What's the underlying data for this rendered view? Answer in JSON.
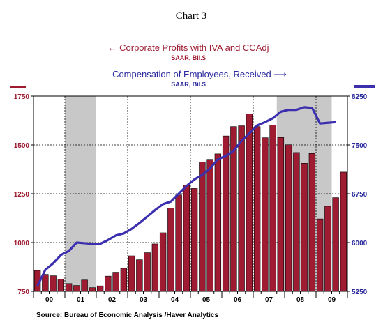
{
  "header": {
    "chart_number": "Chart 3"
  },
  "legend": {
    "profits_label": "← Corporate Profits with IVA and CCAdj",
    "profits_units": "SAAR, Bil.$",
    "comp_label": "Compensation of Employees, Received ⟶",
    "comp_units": "SAAR, Bil.$"
  },
  "source": "Source:  Bureau of Economic Analysis /Haver Analytics",
  "colors": {
    "bars": "#9e1b32",
    "bar_outline": "#000000",
    "line": "#3b2fb0",
    "recession": "#c8c8c8",
    "profits_text": "#9e1b32",
    "comp_text": "#2b2a9e"
  },
  "chart_data": {
    "type": "bar",
    "secondary_type": "line",
    "x_tick_labels": [
      "00",
      "01",
      "02",
      "03",
      "04",
      "05",
      "06",
      "07",
      "08",
      "09"
    ],
    "left_axis": {
      "ylim": [
        750,
        1750
      ],
      "ticks": [
        750,
        1000,
        1250,
        1500,
        1750
      ]
    },
    "right_axis": {
      "ylim": [
        5250,
        8250
      ],
      "ticks": [
        5250,
        6000,
        6750,
        7500,
        8250
      ]
    },
    "recessions": [
      [
        "2001Q1",
        "2001Q4"
      ],
      [
        "2007Q4",
        "2009Q2"
      ]
    ],
    "gridlines": "dashed",
    "series": [
      {
        "name": "Corporate Profits with IVA and CCAdj",
        "axis": "left",
        "type": "bar",
        "x": [
          "2000Q1",
          "2000Q2",
          "2000Q3",
          "2000Q4",
          "2001Q1",
          "2001Q2",
          "2001Q3",
          "2001Q4",
          "2002Q1",
          "2002Q2",
          "2002Q3",
          "2002Q4",
          "2003Q1",
          "2003Q2",
          "2003Q3",
          "2003Q4",
          "2004Q1",
          "2004Q2",
          "2004Q3",
          "2004Q4",
          "2005Q1",
          "2005Q2",
          "2005Q3",
          "2005Q4",
          "2006Q1",
          "2006Q2",
          "2006Q3",
          "2006Q4",
          "2007Q1",
          "2007Q2",
          "2007Q3",
          "2007Q4",
          "2008Q1",
          "2008Q2",
          "2008Q3",
          "2008Q4",
          "2009Q1",
          "2009Q2",
          "2009Q3"
        ],
        "values": [
          857,
          837,
          830,
          812,
          790,
          780,
          808,
          769,
          778,
          828,
          848,
          868,
          932,
          912,
          948,
          993,
          1050,
          1177,
          1244,
          1295,
          1277,
          1413,
          1426,
          1454,
          1546,
          1594,
          1598,
          1659,
          1594,
          1537,
          1602,
          1538,
          1501,
          1461,
          1406,
          1456,
          1121,
          1186,
          1230
        ]
      },
      {
        "name": "Compensation of Employees, Received",
        "axis": "right",
        "type": "line",
        "x": [
          "2000Q1",
          "2000Q2",
          "2000Q3",
          "2000Q4",
          "2001Q1",
          "2001Q2",
          "2001Q3",
          "2001Q4",
          "2002Q1",
          "2002Q2",
          "2002Q3",
          "2002Q4",
          "2003Q1",
          "2003Q2",
          "2003Q3",
          "2003Q4",
          "2004Q1",
          "2004Q2",
          "2004Q3",
          "2004Q4",
          "2005Q1",
          "2005Q2",
          "2005Q3",
          "2005Q4",
          "2006Q1",
          "2006Q2",
          "2006Q3",
          "2006Q4",
          "2007Q1",
          "2007Q2",
          "2007Q3",
          "2007Q4",
          "2008Q1",
          "2008Q2",
          "2008Q3",
          "2008Q4",
          "2009Q1",
          "2009Q2",
          "2009Q3"
        ],
        "values": [
          5330,
          5580,
          5680,
          5810,
          5870,
          6000,
          5990,
          5980,
          5980,
          6040,
          6110,
          6140,
          6210,
          6300,
          6400,
          6500,
          6590,
          6630,
          6750,
          6870,
          6970,
          7040,
          7140,
          7280,
          7330,
          7410,
          7560,
          7680,
          7800,
          7850,
          7910,
          8010,
          8040,
          8040,
          8080,
          8070,
          7830,
          7840,
          7850
        ]
      }
    ],
    "last_bar": {
      "x": "2009Q4",
      "value": 1361
    }
  }
}
